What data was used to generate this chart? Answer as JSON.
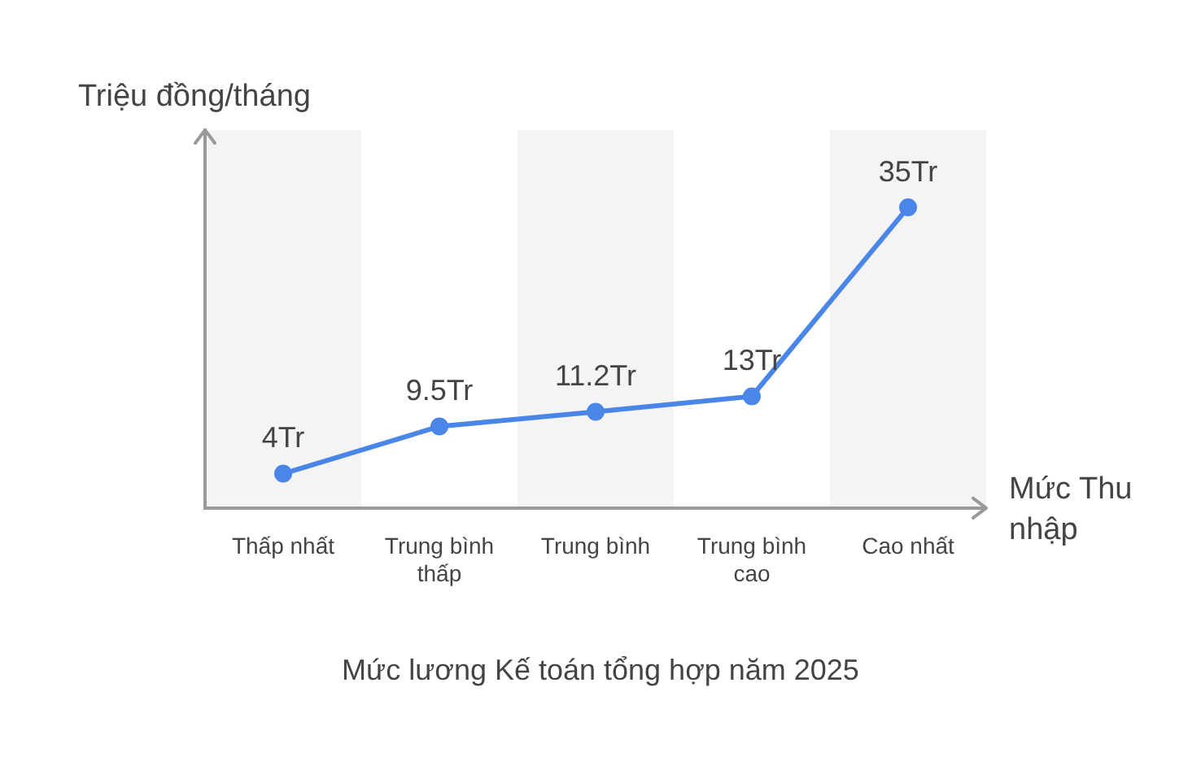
{
  "chart_data": {
    "type": "line",
    "title": "Mức lương Kế toán tổng hợp năm 2025",
    "xlabel": "Mức Thu nhập",
    "ylabel": "Triệu đồng/tháng",
    "categories": [
      "Thấp nhất",
      "Trung bình thấp",
      "Trung bình",
      "Trung bình cao",
      "Cao nhất"
    ],
    "series": [
      {
        "color": "#4a86e8",
        "values": [
          4,
          9.5,
          11.2,
          13,
          35
        ],
        "value_labels": [
          "4Tr",
          "9.5Tr",
          "11.2Tr",
          "13Tr",
          "35Tr"
        ]
      }
    ],
    "ylim": [
      0,
      44
    ],
    "grid": false,
    "legend": false,
    "marker": "circle",
    "line_style": "solid",
    "tick_labels": "x"
  }
}
